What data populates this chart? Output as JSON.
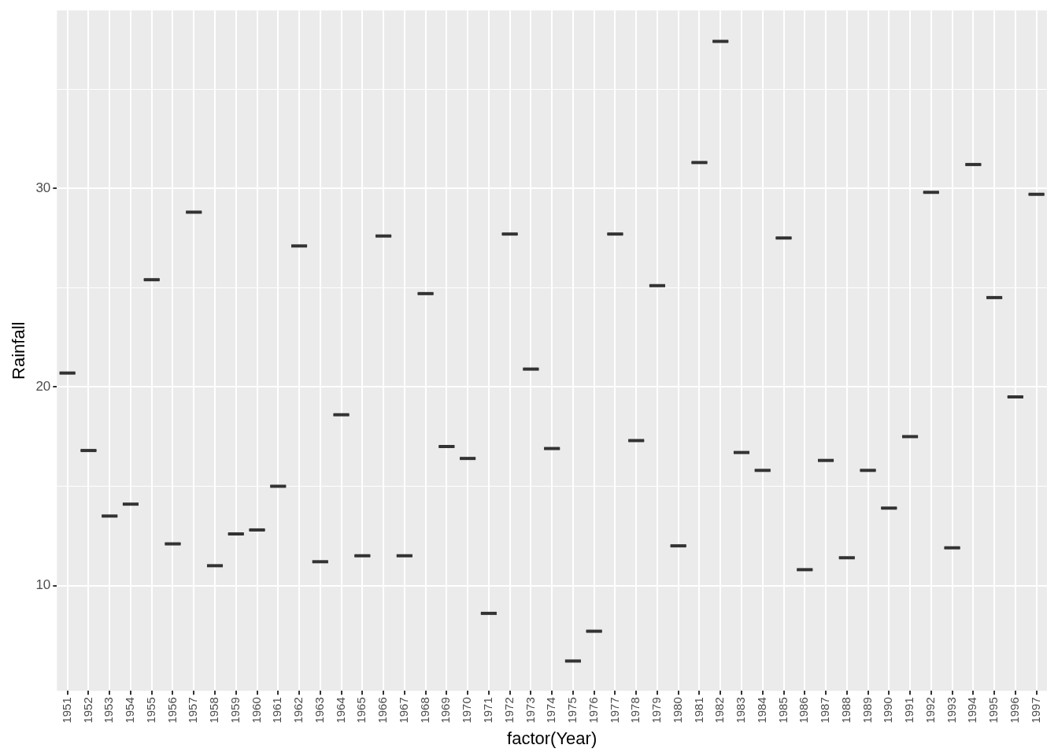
{
  "chart_data": {
    "type": "box",
    "xlabel": "factor(Year)",
    "ylabel": "Rainfall",
    "categories": [
      "1951",
      "1952",
      "1953",
      "1954",
      "1955",
      "1956",
      "1957",
      "1958",
      "1959",
      "1960",
      "1961",
      "1962",
      "1963",
      "1964",
      "1965",
      "1966",
      "1967",
      "1968",
      "1969",
      "1970",
      "1971",
      "1972",
      "1973",
      "1974",
      "1975",
      "1976",
      "1977",
      "1978",
      "1979",
      "1980",
      "1981",
      "1982",
      "1983",
      "1984",
      "1985",
      "1986",
      "1987",
      "1988",
      "1989",
      "1990",
      "1991",
      "1992",
      "1993",
      "1994",
      "1995",
      "1996",
      "1997"
    ],
    "boxes": [
      {
        "low": 20.7,
        "q1": 20.7,
        "median": 20.7,
        "q3": 20.7,
        "high": 20.7
      },
      {
        "low": 16.8,
        "q1": 16.8,
        "median": 16.8,
        "q3": 16.8,
        "high": 16.8
      },
      {
        "low": 13.5,
        "q1": 13.5,
        "median": 13.5,
        "q3": 13.5,
        "high": 13.5
      },
      {
        "low": 14.1,
        "q1": 14.1,
        "median": 14.1,
        "q3": 14.1,
        "high": 14.1
      },
      {
        "low": 25.4,
        "q1": 25.4,
        "median": 25.4,
        "q3": 25.4,
        "high": 25.4
      },
      {
        "low": 12.1,
        "q1": 12.1,
        "median": 12.1,
        "q3": 12.1,
        "high": 12.1
      },
      {
        "low": 28.8,
        "q1": 28.8,
        "median": 28.8,
        "q3": 28.8,
        "high": 28.8
      },
      {
        "low": 11.0,
        "q1": 11.0,
        "median": 11.0,
        "q3": 11.0,
        "high": 11.0
      },
      {
        "low": 12.6,
        "q1": 12.6,
        "median": 12.6,
        "q3": 12.6,
        "high": 12.6
      },
      {
        "low": 12.8,
        "q1": 12.8,
        "median": 12.8,
        "q3": 12.8,
        "high": 12.8
      },
      {
        "low": 15.0,
        "q1": 15.0,
        "median": 15.0,
        "q3": 15.0,
        "high": 15.0
      },
      {
        "low": 27.1,
        "q1": 27.1,
        "median": 27.1,
        "q3": 27.1,
        "high": 27.1
      },
      {
        "low": 11.2,
        "q1": 11.2,
        "median": 11.2,
        "q3": 11.2,
        "high": 11.2
      },
      {
        "low": 18.6,
        "q1": 18.6,
        "median": 18.6,
        "q3": 18.6,
        "high": 18.6
      },
      {
        "low": 11.5,
        "q1": 11.5,
        "median": 11.5,
        "q3": 11.5,
        "high": 11.5
      },
      {
        "low": 27.6,
        "q1": 27.6,
        "median": 27.6,
        "q3": 27.6,
        "high": 27.6
      },
      {
        "low": 11.5,
        "q1": 11.5,
        "median": 11.5,
        "q3": 11.5,
        "high": 11.5
      },
      {
        "low": 24.7,
        "q1": 24.7,
        "median": 24.7,
        "q3": 24.7,
        "high": 24.7
      },
      {
        "low": 17.0,
        "q1": 17.0,
        "median": 17.0,
        "q3": 17.0,
        "high": 17.0
      },
      {
        "low": 16.4,
        "q1": 16.4,
        "median": 16.4,
        "q3": 16.4,
        "high": 16.4
      },
      {
        "low": 8.6,
        "q1": 8.6,
        "median": 8.6,
        "q3": 8.6,
        "high": 8.6
      },
      {
        "low": 27.7,
        "q1": 27.7,
        "median": 27.7,
        "q3": 27.7,
        "high": 27.7
      },
      {
        "low": 20.9,
        "q1": 20.9,
        "median": 20.9,
        "q3": 20.9,
        "high": 20.9
      },
      {
        "low": 16.9,
        "q1": 16.9,
        "median": 16.9,
        "q3": 16.9,
        "high": 16.9
      },
      {
        "low": 6.2,
        "q1": 6.2,
        "median": 6.2,
        "q3": 6.2,
        "high": 6.2
      },
      {
        "low": 7.7,
        "q1": 7.7,
        "median": 7.7,
        "q3": 7.7,
        "high": 7.7
      },
      {
        "low": 27.7,
        "q1": 27.7,
        "median": 27.7,
        "q3": 27.7,
        "high": 27.7
      },
      {
        "low": 17.3,
        "q1": 17.3,
        "median": 17.3,
        "q3": 17.3,
        "high": 17.3
      },
      {
        "low": 25.1,
        "q1": 25.1,
        "median": 25.1,
        "q3": 25.1,
        "high": 25.1
      },
      {
        "low": 12.0,
        "q1": 12.0,
        "median": 12.0,
        "q3": 12.0,
        "high": 12.0
      },
      {
        "low": 31.3,
        "q1": 31.3,
        "median": 31.3,
        "q3": 31.3,
        "high": 31.3
      },
      {
        "low": 37.4,
        "q1": 37.4,
        "median": 37.4,
        "q3": 37.4,
        "high": 37.4
      },
      {
        "low": 16.7,
        "q1": 16.7,
        "median": 16.7,
        "q3": 16.7,
        "high": 16.7
      },
      {
        "low": 15.8,
        "q1": 15.8,
        "median": 15.8,
        "q3": 15.8,
        "high": 15.8
      },
      {
        "low": 27.5,
        "q1": 27.5,
        "median": 27.5,
        "q3": 27.5,
        "high": 27.5
      },
      {
        "low": 10.8,
        "q1": 10.8,
        "median": 10.8,
        "q3": 10.8,
        "high": 10.8
      },
      {
        "low": 16.3,
        "q1": 16.3,
        "median": 16.3,
        "q3": 16.3,
        "high": 16.3
      },
      {
        "low": 11.4,
        "q1": 11.4,
        "median": 11.4,
        "q3": 11.4,
        "high": 11.4
      },
      {
        "low": 15.8,
        "q1": 15.8,
        "median": 15.8,
        "q3": 15.8,
        "high": 15.8
      },
      {
        "low": 13.9,
        "q1": 13.9,
        "median": 13.9,
        "q3": 13.9,
        "high": 13.9
      },
      {
        "low": 17.5,
        "q1": 17.5,
        "median": 17.5,
        "q3": 17.5,
        "high": 17.5
      },
      {
        "low": 29.8,
        "q1": 29.8,
        "median": 29.8,
        "q3": 29.8,
        "high": 29.8
      },
      {
        "low": 11.9,
        "q1": 11.9,
        "median": 11.9,
        "q3": 11.9,
        "high": 11.9
      },
      {
        "low": 31.2,
        "q1": 31.2,
        "median": 31.2,
        "q3": 31.2,
        "high": 31.2
      },
      {
        "low": 24.5,
        "q1": 24.5,
        "median": 24.5,
        "q3": 24.5,
        "high": 24.5
      },
      {
        "low": 19.5,
        "q1": 19.5,
        "median": 19.5,
        "q3": 19.5,
        "high": 19.5
      },
      {
        "low": 29.7,
        "q1": 29.7,
        "median": 29.7,
        "q3": 29.7,
        "high": 29.7
      }
    ],
    "color": "#333333",
    "ylim": [
      4.7,
      38.96
    ],
    "yticks": [
      {
        "value": 10,
        "label": "10"
      },
      {
        "value": 15,
        "label": null
      },
      {
        "value": 20,
        "label": "20"
      },
      {
        "value": 25,
        "label": null
      },
      {
        "value": 30,
        "label": "30"
      },
      {
        "value": 35,
        "label": null
      }
    ],
    "grid": true
  }
}
